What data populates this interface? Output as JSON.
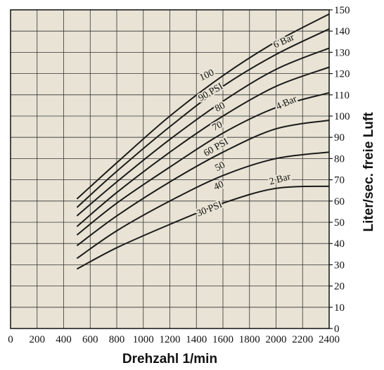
{
  "chart_data": {
    "type": "line",
    "xlabel": "Drehzahl 1/min",
    "ylabel": "Liter/sec. freie Luft",
    "xlim": [
      0,
      2400
    ],
    "ylim": [
      0,
      150
    ],
    "x_ticks": [
      0,
      200,
      400,
      600,
      800,
      1000,
      1200,
      1400,
      1600,
      1800,
      2000,
      2200,
      2400
    ],
    "y_ticks": [
      0,
      10,
      20,
      30,
      40,
      50,
      60,
      70,
      80,
      90,
      100,
      110,
      120,
      130,
      140,
      150
    ],
    "y_axis_side": "right",
    "grid": true,
    "background": "#e8e3d4",
    "line_color": "#1a1a1a",
    "x": [
      500,
      800,
      1200,
      1600,
      2000,
      2400
    ],
    "series": [
      {
        "name": "100",
        "values": [
          61,
          78,
          100,
          119,
          135,
          148
        ]
      },
      {
        "name": "90 PSI",
        "values": [
          57,
          74,
          95,
          114,
          129,
          141
        ]
      },
      {
        "name": "6 Bar",
        "values": [
          53,
          69,
          89,
          107,
          122,
          132
        ]
      },
      {
        "name": "80",
        "values": [
          48,
          64,
          83,
          100,
          114,
          123
        ]
      },
      {
        "name": "70",
        "values": [
          44,
          59,
          76,
          92,
          104,
          111
        ]
      },
      {
        "name": "4 Bar",
        "values": [
          39,
          53,
          69,
          83,
          94,
          98
        ]
      },
      {
        "name": "60 PSI",
        "values": [
          33,
          46,
          60,
          72,
          80,
          83
        ]
      },
      {
        "name": "50",
        "values": [
          28,
          38,
          49,
          59,
          66,
          67
        ]
      }
    ],
    "curve_labels": [
      {
        "text": "6 Bar",
        "x": 2060,
        "y": 135,
        "angle": -24
      },
      {
        "text": "100",
        "x": 1480,
        "y": 119,
        "angle": -25
      },
      {
        "text": "90 PSI",
        "x": 1510,
        "y": 111,
        "angle": -30
      },
      {
        "text": "80",
        "x": 1580,
        "y": 104,
        "angle": -27
      },
      {
        "text": "4 Bar",
        "x": 2080,
        "y": 106,
        "angle": -24
      },
      {
        "text": "70",
        "x": 1560,
        "y": 95,
        "angle": -27
      },
      {
        "text": "60 PSI",
        "x": 1550,
        "y": 85,
        "angle": -30
      },
      {
        "text": "50",
        "x": 1580,
        "y": 76,
        "angle": -27
      },
      {
        "text": "40",
        "x": 1570,
        "y": 67,
        "angle": -24
      },
      {
        "text": "2 Bar",
        "x": 2030,
        "y": 70,
        "angle": -15
      },
      {
        "text": "30 PSI",
        "x": 1500,
        "y": 56,
        "angle": -22
      }
    ]
  }
}
